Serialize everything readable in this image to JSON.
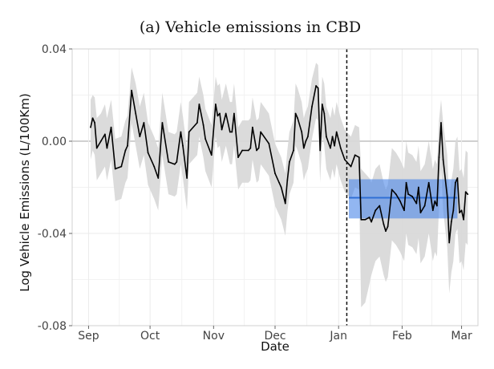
{
  "chart_data": {
    "type": "line",
    "title": "(a) Vehicle emissions in CBD",
    "xlabel": "Date",
    "ylabel": "Log Vehicle Emissions (L/100Km)",
    "y_ticks": [
      "0.04",
      "0.00",
      "-0.04",
      "-0.08"
    ],
    "y_tick_values": [
      0.04,
      0.0,
      -0.04,
      -0.08
    ],
    "ylim": [
      -0.08,
      0.04
    ],
    "x_ticks": [
      "Sep",
      "Oct",
      "Nov",
      "Dec",
      "Jan",
      "Feb",
      "Mar"
    ],
    "x_tick_values": [
      "2019-09-01",
      "2019-10-01",
      "2019-11-01",
      "2019-12-01",
      "2020-01-01",
      "2020-02-01",
      "2020-03-01"
    ],
    "xlim": [
      "2019-08-24",
      "2020-03-09"
    ],
    "grid": true,
    "intervention_date": "2020-01-05",
    "post_period_estimate": {
      "start": "2020-01-06",
      "end": "2020-02-28",
      "mean": -0.0245,
      "ci_low": -0.0335,
      "ci_high": -0.0165,
      "color": "#4a86e8"
    },
    "series": [
      {
        "color": "#000000",
        "band_color": "#d9d9d9",
        "points": [
          {
            "x": "2019-09-02",
            "y": 0.006,
            "lo": -0.008,
            "hi": 0.018
          },
          {
            "x": "2019-09-03",
            "y": 0.01,
            "lo": -0.004,
            "hi": 0.02
          },
          {
            "x": "2019-09-04",
            "y": 0.008,
            "lo": -0.006,
            "hi": 0.019
          },
          {
            "x": "2019-09-05",
            "y": -0.003,
            "lo": -0.017,
            "hi": 0.01
          },
          {
            "x": "2019-09-07",
            "y": 0.0,
            "lo": -0.014,
            "hi": 0.012
          },
          {
            "x": "2019-09-09",
            "y": 0.003,
            "lo": -0.011,
            "hi": 0.016
          },
          {
            "x": "2019-09-10",
            "y": -0.003,
            "lo": -0.017,
            "hi": 0.01
          },
          {
            "x": "2019-09-12",
            "y": 0.006,
            "lo": -0.008,
            "hi": 0.018
          },
          {
            "x": "2019-09-14",
            "y": -0.012,
            "lo": -0.026,
            "hi": 0.001
          },
          {
            "x": "2019-09-17",
            "y": -0.011,
            "lo": -0.025,
            "hi": 0.002
          },
          {
            "x": "2019-09-19",
            "y": -0.004,
            "lo": -0.018,
            "hi": 0.009
          },
          {
            "x": "2019-09-20",
            "y": -0.002,
            "lo": -0.016,
            "hi": 0.011
          },
          {
            "x": "2019-09-22",
            "y": 0.022,
            "lo": 0.008,
            "hi": 0.032
          },
          {
            "x": "2019-09-24",
            "y": 0.012,
            "lo": -0.002,
            "hi": 0.025
          },
          {
            "x": "2019-09-26",
            "y": 0.002,
            "lo": -0.012,
            "hi": 0.015
          },
          {
            "x": "2019-09-28",
            "y": 0.008,
            "lo": -0.006,
            "hi": 0.021
          },
          {
            "x": "2019-09-30",
            "y": -0.005,
            "lo": -0.019,
            "hi": 0.008
          },
          {
            "x": "2019-10-03",
            "y": -0.011,
            "lo": -0.025,
            "hi": 0.002
          },
          {
            "x": "2019-10-05",
            "y": -0.016,
            "lo": -0.03,
            "hi": -0.003
          },
          {
            "x": "2019-10-07",
            "y": 0.008,
            "lo": -0.006,
            "hi": 0.021
          },
          {
            "x": "2019-10-10",
            "y": -0.009,
            "lo": -0.023,
            "hi": 0.004
          },
          {
            "x": "2019-10-13",
            "y": -0.01,
            "lo": -0.024,
            "hi": 0.003
          },
          {
            "x": "2019-10-14",
            "y": -0.009,
            "lo": -0.023,
            "hi": 0.004
          },
          {
            "x": "2019-10-16",
            "y": 0.004,
            "lo": -0.01,
            "hi": 0.017
          },
          {
            "x": "2019-10-17",
            "y": -0.002,
            "lo": -0.016,
            "hi": 0.011
          },
          {
            "x": "2019-10-19",
            "y": -0.016,
            "lo": -0.03,
            "hi": -0.003
          },
          {
            "x": "2019-10-20",
            "y": 0.004,
            "lo": -0.01,
            "hi": 0.017
          },
          {
            "x": "2019-10-24",
            "y": 0.008,
            "lo": -0.006,
            "hi": 0.021
          },
          {
            "x": "2019-10-25",
            "y": 0.016,
            "lo": 0.002,
            "hi": 0.028
          },
          {
            "x": "2019-10-27",
            "y": 0.007,
            "lo": -0.007,
            "hi": 0.02
          },
          {
            "x": "2019-10-28",
            "y": 0.001,
            "lo": -0.013,
            "hi": 0.014
          },
          {
            "x": "2019-10-31",
            "y": -0.006,
            "lo": -0.02,
            "hi": 0.007
          },
          {
            "x": "2019-11-02",
            "y": 0.016,
            "lo": 0.002,
            "hi": 0.028
          },
          {
            "x": "2019-11-03",
            "y": 0.011,
            "lo": -0.003,
            "hi": 0.024
          },
          {
            "x": "2019-11-04",
            "y": 0.012,
            "lo": -0.002,
            "hi": 0.025
          },
          {
            "x": "2019-11-05",
            "y": 0.005,
            "lo": -0.009,
            "hi": 0.018
          },
          {
            "x": "2019-11-07",
            "y": 0.012,
            "lo": -0.002,
            "hi": 0.025
          },
          {
            "x": "2019-11-09",
            "y": 0.004,
            "lo": -0.01,
            "hi": 0.017
          },
          {
            "x": "2019-11-10",
            "y": 0.004,
            "lo": -0.01,
            "hi": 0.017
          },
          {
            "x": "2019-11-11",
            "y": 0.012,
            "lo": -0.002,
            "hi": 0.025
          },
          {
            "x": "2019-11-13",
            "y": -0.007,
            "lo": -0.021,
            "hi": 0.006
          },
          {
            "x": "2019-11-15",
            "y": -0.004,
            "lo": -0.018,
            "hi": 0.009
          },
          {
            "x": "2019-11-18",
            "y": -0.004,
            "lo": -0.018,
            "hi": 0.009
          },
          {
            "x": "2019-11-19",
            "y": -0.003,
            "lo": -0.017,
            "hi": 0.01
          },
          {
            "x": "2019-11-20",
            "y": 0.006,
            "lo": -0.008,
            "hi": 0.019
          },
          {
            "x": "2019-11-22",
            "y": -0.004,
            "lo": -0.018,
            "hi": 0.009
          },
          {
            "x": "2019-11-23",
            "y": -0.003,
            "lo": -0.017,
            "hi": 0.01
          },
          {
            "x": "2019-11-24",
            "y": 0.004,
            "lo": -0.01,
            "hi": 0.017
          },
          {
            "x": "2019-11-28",
            "y": -0.001,
            "lo": -0.015,
            "hi": 0.012
          },
          {
            "x": "2019-12-01",
            "y": -0.014,
            "lo": -0.028,
            "hi": -0.001
          },
          {
            "x": "2019-12-03",
            "y": -0.018,
            "lo": -0.032,
            "hi": -0.005
          },
          {
            "x": "2019-12-04",
            "y": -0.02,
            "lo": -0.034,
            "hi": -0.007
          },
          {
            "x": "2019-12-06",
            "y": -0.027,
            "lo": -0.041,
            "hi": -0.014
          },
          {
            "x": "2019-12-07",
            "y": -0.017,
            "lo": -0.031,
            "hi": -0.004
          },
          {
            "x": "2019-12-08",
            "y": -0.009,
            "lo": -0.023,
            "hi": 0.004
          },
          {
            "x": "2019-12-10",
            "y": -0.004,
            "lo": -0.018,
            "hi": 0.009
          },
          {
            "x": "2019-12-11",
            "y": 0.012,
            "lo": -0.002,
            "hi": 0.025
          },
          {
            "x": "2019-12-12",
            "y": 0.01,
            "lo": -0.004,
            "hi": 0.023
          },
          {
            "x": "2019-12-14",
            "y": 0.004,
            "lo": -0.01,
            "hi": 0.017
          },
          {
            "x": "2019-12-15",
            "y": -0.003,
            "lo": -0.017,
            "hi": 0.01
          },
          {
            "x": "2019-12-16",
            "y": 0.0,
            "lo": -0.014,
            "hi": 0.013
          },
          {
            "x": "2019-12-17",
            "y": 0.002,
            "lo": -0.012,
            "hi": 0.015
          },
          {
            "x": "2019-12-19",
            "y": 0.015,
            "lo": 0.001,
            "hi": 0.027
          },
          {
            "x": "2019-12-21",
            "y": 0.024,
            "lo": 0.01,
            "hi": 0.034
          },
          {
            "x": "2019-12-22",
            "y": 0.023,
            "lo": 0.009,
            "hi": 0.033
          },
          {
            "x": "2019-12-23",
            "y": -0.004,
            "lo": -0.018,
            "hi": 0.009
          },
          {
            "x": "2019-12-24",
            "y": 0.016,
            "lo": 0.002,
            "hi": 0.028
          },
          {
            "x": "2019-12-25",
            "y": 0.012,
            "lo": -0.002,
            "hi": 0.025
          },
          {
            "x": "2019-12-26",
            "y": 0.002,
            "lo": -0.012,
            "hi": 0.015
          },
          {
            "x": "2019-12-28",
            "y": -0.003,
            "lo": -0.017,
            "hi": 0.01
          },
          {
            "x": "2019-12-29",
            "y": 0.002,
            "lo": -0.012,
            "hi": 0.015
          },
          {
            "x": "2019-12-30",
            "y": -0.002,
            "lo": -0.016,
            "hi": 0.011
          },
          {
            "x": "2019-12-31",
            "y": 0.004,
            "lo": -0.01,
            "hi": 0.017
          },
          {
            "x": "2020-01-02",
            "y": -0.003,
            "lo": -0.017,
            "hi": 0.01
          },
          {
            "x": "2020-01-04",
            "y": -0.008,
            "lo": -0.022,
            "hi": 0.005
          },
          {
            "x": "2020-01-07",
            "y": -0.011,
            "lo": -0.025,
            "hi": 0.002
          },
          {
            "x": "2020-01-09",
            "y": -0.006,
            "lo": -0.02,
            "hi": 0.007
          },
          {
            "x": "2020-01-11",
            "y": -0.007,
            "lo": -0.021,
            "hi": 0.006
          },
          {
            "x": "2020-01-12",
            "y": -0.034,
            "lo": -0.072,
            "hi": -0.012
          },
          {
            "x": "2020-01-14",
            "y": -0.034,
            "lo": -0.07,
            "hi": -0.014
          },
          {
            "x": "2020-01-16",
            "y": -0.033,
            "lo": -0.062,
            "hi": -0.016
          },
          {
            "x": "2020-01-17",
            "y": -0.035,
            "lo": -0.058,
            "hi": -0.018
          },
          {
            "x": "2020-01-19",
            "y": -0.03,
            "lo": -0.052,
            "hi": -0.012
          },
          {
            "x": "2020-01-21",
            "y": -0.028,
            "lo": -0.05,
            "hi": -0.01
          },
          {
            "x": "2020-01-23",
            "y": -0.036,
            "lo": -0.058,
            "hi": -0.018
          },
          {
            "x": "2020-01-24",
            "y": -0.039,
            "lo": -0.061,
            "hi": -0.021
          },
          {
            "x": "2020-01-25",
            "y": -0.037,
            "lo": -0.059,
            "hi": -0.019
          },
          {
            "x": "2020-01-27",
            "y": -0.021,
            "lo": -0.043,
            "hi": -0.003
          },
          {
            "x": "2020-01-29",
            "y": -0.023,
            "lo": -0.045,
            "hi": -0.005
          },
          {
            "x": "2020-01-31",
            "y": -0.026,
            "lo": -0.048,
            "hi": -0.008
          },
          {
            "x": "2020-02-02",
            "y": -0.03,
            "lo": -0.052,
            "hi": -0.012
          },
          {
            "x": "2020-02-03",
            "y": -0.018,
            "lo": -0.04,
            "hi": 0.0
          },
          {
            "x": "2020-02-04",
            "y": -0.023,
            "lo": -0.045,
            "hi": -0.005
          },
          {
            "x": "2020-02-06",
            "y": -0.024,
            "lo": -0.046,
            "hi": -0.006
          },
          {
            "x": "2020-02-08",
            "y": -0.027,
            "lo": -0.049,
            "hi": -0.009
          },
          {
            "x": "2020-02-09",
            "y": -0.02,
            "lo": -0.042,
            "hi": -0.002
          },
          {
            "x": "2020-02-10",
            "y": -0.031,
            "lo": -0.053,
            "hi": -0.013
          },
          {
            "x": "2020-02-12",
            "y": -0.028,
            "lo": -0.05,
            "hi": -0.01
          },
          {
            "x": "2020-02-14",
            "y": -0.018,
            "lo": -0.04,
            "hi": 0.0
          },
          {
            "x": "2020-02-16",
            "y": -0.03,
            "lo": -0.052,
            "hi": -0.012
          },
          {
            "x": "2020-02-17",
            "y": -0.026,
            "lo": -0.048,
            "hi": -0.008
          },
          {
            "x": "2020-02-18",
            "y": -0.028,
            "lo": -0.05,
            "hi": -0.01
          },
          {
            "x": "2020-02-19",
            "y": -0.007,
            "lo": -0.029,
            "hi": 0.009
          },
          {
            "x": "2020-02-20",
            "y": 0.008,
            "lo": -0.012,
            "hi": 0.018
          },
          {
            "x": "2020-02-21",
            "y": -0.008,
            "lo": -0.03,
            "hi": 0.008
          },
          {
            "x": "2020-02-23",
            "y": -0.024,
            "lo": -0.046,
            "hi": -0.006
          },
          {
            "x": "2020-02-24",
            "y": -0.044,
            "lo": -0.066,
            "hi": -0.026
          },
          {
            "x": "2020-02-25",
            "y": -0.035,
            "lo": -0.057,
            "hi": -0.017
          },
          {
            "x": "2020-02-26",
            "y": -0.03,
            "lo": -0.052,
            "hi": -0.012
          },
          {
            "x": "2020-02-27",
            "y": -0.018,
            "lo": -0.04,
            "hi": 0.0
          },
          {
            "x": "2020-02-28",
            "y": -0.016,
            "lo": -0.038,
            "hi": 0.002
          },
          {
            "x": "2020-02-29",
            "y": -0.031,
            "lo": -0.053,
            "hi": -0.013
          },
          {
            "x": "2020-03-01",
            "y": -0.03,
            "lo": -0.052,
            "hi": -0.012
          },
          {
            "x": "2020-03-02",
            "y": -0.034,
            "lo": -0.056,
            "hi": -0.016
          },
          {
            "x": "2020-03-03",
            "y": -0.022,
            "lo": -0.044,
            "hi": -0.004
          },
          {
            "x": "2020-03-04",
            "y": -0.023,
            "lo": -0.045,
            "hi": -0.005
          }
        ]
      }
    ]
  }
}
